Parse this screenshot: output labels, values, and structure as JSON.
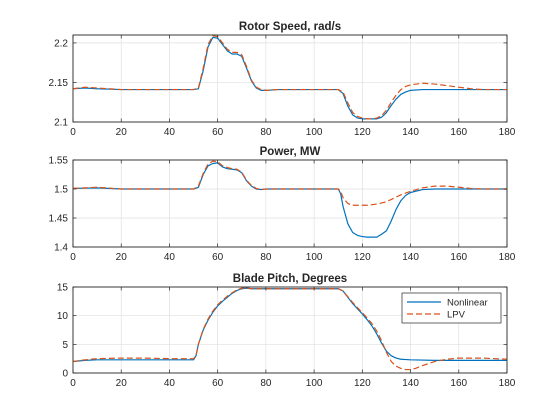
{
  "colors": {
    "nonlinear": "#0072BD",
    "lpv": "#D95319"
  },
  "chart_data": [
    {
      "type": "line",
      "title": "Rotor Speed, rad/s",
      "xlim": [
        0,
        180
      ],
      "ylim": [
        2.1,
        2.21
      ],
      "xticks": [
        0,
        20,
        40,
        60,
        80,
        100,
        120,
        140,
        160,
        180
      ],
      "yticks": [
        2.1,
        2.15,
        2.2
      ],
      "ytick_labels": [
        "2.1",
        "2.15",
        "2.2"
      ],
      "grid": true,
      "series": [
        {
          "name": "Nonlinear",
          "x": [
            0,
            5,
            10,
            20,
            30,
            40,
            50,
            52,
            54,
            56,
            58,
            60,
            62,
            64,
            66,
            68,
            70,
            72,
            74,
            76,
            78,
            80,
            85,
            90,
            100,
            110,
            112,
            114,
            116,
            118,
            120,
            122,
            124,
            126,
            128,
            130,
            132,
            134,
            136,
            138,
            140,
            145,
            150,
            160,
            170,
            180
          ],
          "y": [
            2.142,
            2.143,
            2.142,
            2.141,
            2.141,
            2.141,
            2.141,
            2.142,
            2.165,
            2.195,
            2.207,
            2.206,
            2.198,
            2.19,
            2.186,
            2.186,
            2.183,
            2.168,
            2.152,
            2.143,
            2.14,
            2.14,
            2.141,
            2.141,
            2.141,
            2.141,
            2.136,
            2.12,
            2.109,
            2.105,
            2.104,
            2.104,
            2.104,
            2.104,
            2.106,
            2.112,
            2.121,
            2.129,
            2.135,
            2.138,
            2.14,
            2.141,
            2.141,
            2.141,
            2.141,
            2.141
          ]
        },
        {
          "name": "LPV",
          "x": [
            0,
            5,
            10,
            20,
            30,
            40,
            50,
            52,
            54,
            56,
            58,
            60,
            62,
            64,
            66,
            68,
            70,
            72,
            74,
            76,
            78,
            80,
            85,
            90,
            100,
            110,
            112,
            114,
            116,
            118,
            120,
            122,
            124,
            126,
            128,
            130,
            132,
            134,
            136,
            138,
            140,
            145,
            150,
            155,
            160,
            165,
            170,
            175,
            180
          ],
          "y": [
            2.142,
            2.144,
            2.143,
            2.141,
            2.141,
            2.141,
            2.141,
            2.143,
            2.168,
            2.198,
            2.209,
            2.208,
            2.2,
            2.192,
            2.188,
            2.188,
            2.185,
            2.17,
            2.153,
            2.144,
            2.141,
            2.14,
            2.141,
            2.141,
            2.141,
            2.141,
            2.138,
            2.124,
            2.112,
            2.107,
            2.105,
            2.104,
            2.104,
            2.105,
            2.108,
            2.115,
            2.125,
            2.134,
            2.141,
            2.145,
            2.147,
            2.149,
            2.148,
            2.146,
            2.144,
            2.142,
            2.141,
            2.141,
            2.141
          ]
        }
      ]
    },
    {
      "type": "line",
      "title": "Power, MW",
      "xlim": [
        0,
        180
      ],
      "ylim": [
        1.4,
        1.55
      ],
      "xticks": [
        0,
        20,
        40,
        60,
        80,
        100,
        120,
        140,
        160,
        180
      ],
      "yticks": [
        1.4,
        1.45,
        1.5,
        1.55
      ],
      "ytick_labels": [
        "1.4",
        "1.45",
        "1.5",
        "1.55"
      ],
      "grid": true,
      "series": [
        {
          "name": "Nonlinear",
          "x": [
            0,
            10,
            20,
            30,
            40,
            50,
            52,
            54,
            56,
            58,
            60,
            62,
            64,
            66,
            68,
            70,
            72,
            74,
            76,
            78,
            80,
            90,
            100,
            110,
            111,
            112,
            114,
            116,
            118,
            120,
            122,
            124,
            126,
            128,
            130,
            132,
            134,
            136,
            138,
            140,
            145,
            150,
            160,
            170,
            180
          ],
          "y": [
            1.501,
            1.502,
            1.5,
            1.5,
            1.5,
            1.5,
            1.503,
            1.525,
            1.54,
            1.544,
            1.545,
            1.538,
            1.535,
            1.534,
            1.533,
            1.528,
            1.514,
            1.505,
            1.5,
            1.499,
            1.5,
            1.5,
            1.5,
            1.5,
            1.492,
            1.47,
            1.44,
            1.425,
            1.42,
            1.418,
            1.417,
            1.417,
            1.417,
            1.422,
            1.428,
            1.445,
            1.465,
            1.48,
            1.489,
            1.494,
            1.499,
            1.5,
            1.5,
            1.5,
            1.5
          ]
        },
        {
          "name": "LPV",
          "x": [
            0,
            10,
            20,
            30,
            40,
            50,
            52,
            54,
            56,
            58,
            60,
            62,
            64,
            66,
            68,
            70,
            72,
            74,
            76,
            78,
            80,
            90,
            100,
            110,
            111,
            112,
            114,
            116,
            118,
            120,
            122,
            124,
            126,
            128,
            130,
            132,
            134,
            136,
            138,
            140,
            145,
            150,
            155,
            160,
            165,
            170,
            180
          ],
          "y": [
            1.501,
            1.503,
            1.5,
            1.5,
            1.5,
            1.5,
            1.505,
            1.527,
            1.543,
            1.548,
            1.547,
            1.54,
            1.537,
            1.535,
            1.534,
            1.529,
            1.515,
            1.506,
            1.501,
            1.499,
            1.5,
            1.5,
            1.5,
            1.5,
            1.496,
            1.485,
            1.475,
            1.472,
            1.472,
            1.472,
            1.472,
            1.473,
            1.474,
            1.476,
            1.478,
            1.482,
            1.486,
            1.49,
            1.493,
            1.496,
            1.502,
            1.505,
            1.505,
            1.503,
            1.501,
            1.5,
            1.5
          ]
        }
      ]
    },
    {
      "type": "line",
      "title": "Blade Pitch, Degrees",
      "xlim": [
        0,
        180
      ],
      "ylim": [
        0,
        15
      ],
      "xticks": [
        0,
        20,
        40,
        60,
        80,
        100,
        120,
        140,
        160,
        180
      ],
      "yticks": [
        0,
        5,
        10,
        15
      ],
      "ytick_labels": [
        "0",
        "5",
        "10",
        "15"
      ],
      "grid": true,
      "legend": {
        "location": "top-right",
        "entries": [
          "Nonlinear",
          "LPV"
        ]
      },
      "series": [
        {
          "name": "Nonlinear",
          "x": [
            0,
            5,
            10,
            20,
            30,
            40,
            50,
            51,
            52,
            54,
            56,
            58,
            60,
            62,
            64,
            66,
            68,
            70,
            72,
            74,
            76,
            80,
            90,
            100,
            108,
            110,
            112,
            114,
            116,
            118,
            120,
            122,
            124,
            126,
            128,
            130,
            132,
            134,
            136,
            140,
            150,
            160,
            170,
            180
          ],
          "y": [
            2.0,
            2.2,
            2.3,
            2.3,
            2.3,
            2.3,
            2.3,
            3.0,
            5.0,
            7.5,
            9.2,
            10.6,
            11.7,
            12.5,
            13.2,
            13.9,
            14.4,
            14.7,
            14.8,
            14.7,
            14.7,
            14.7,
            14.7,
            14.7,
            14.7,
            14.7,
            14.3,
            13.2,
            12.1,
            11.2,
            10.3,
            9.3,
            8.2,
            6.8,
            5.2,
            3.8,
            3.0,
            2.6,
            2.4,
            2.3,
            2.2,
            2.2,
            2.2,
            2.2
          ]
        },
        {
          "name": "LPV",
          "x": [
            0,
            5,
            10,
            20,
            30,
            40,
            50,
            51,
            52,
            54,
            56,
            58,
            60,
            62,
            64,
            66,
            68,
            70,
            72,
            74,
            76,
            80,
            90,
            100,
            108,
            110,
            112,
            114,
            116,
            118,
            120,
            122,
            124,
            126,
            128,
            130,
            132,
            134,
            136,
            138,
            140,
            142,
            145,
            150,
            155,
            160,
            165,
            170,
            175,
            180
          ],
          "y": [
            2.0,
            2.3,
            2.5,
            2.6,
            2.6,
            2.5,
            2.5,
            3.0,
            5.0,
            7.6,
            9.4,
            10.8,
            11.9,
            12.7,
            13.4,
            14.0,
            14.5,
            14.8,
            14.8,
            14.7,
            14.7,
            14.7,
            14.7,
            14.7,
            14.7,
            14.7,
            14.3,
            13.3,
            12.3,
            11.4,
            10.5,
            9.6,
            8.6,
            7.3,
            5.6,
            3.6,
            2.0,
            1.2,
            0.8,
            0.6,
            0.6,
            0.8,
            1.3,
            2.0,
            2.4,
            2.6,
            2.6,
            2.6,
            2.5,
            2.4
          ]
        }
      ]
    }
  ]
}
